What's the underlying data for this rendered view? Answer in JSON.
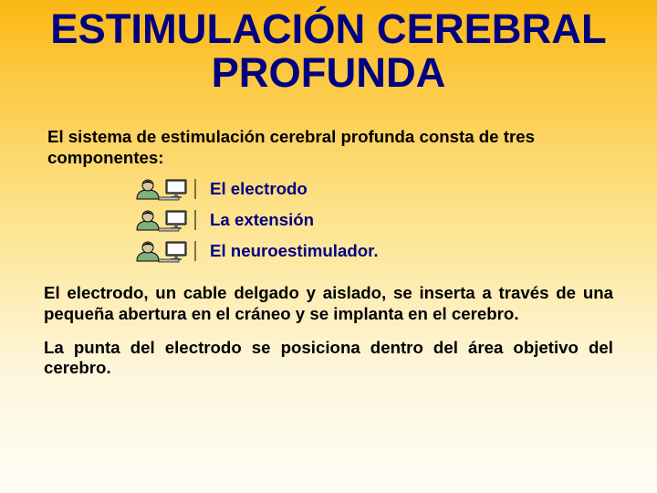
{
  "background": {
    "gradient_colors": [
      "#fbb813",
      "#fcc840",
      "#fde490",
      "#fef6db",
      "#fffdf5"
    ],
    "gradient_stops": [
      0,
      15,
      45,
      75,
      100
    ]
  },
  "typography": {
    "font_family": "Comic Sans MS",
    "title_color": "#000080",
    "body_color": "#000000",
    "title_fontsize_pt": 34,
    "body_fontsize_pt": 14,
    "list_fontsize_pt": 14
  },
  "title": "ESTIMULACIÓN CEREBRAL PROFUNDA",
  "intro": "El sistema de estimulación cerebral profunda consta de tres componentes:",
  "list_items": [
    {
      "label": "El electrodo"
    },
    {
      "label": "La extensión"
    },
    {
      "label": "El neuroestimulador."
    }
  ],
  "bullet_icon": {
    "name": "computer-user-icon",
    "colors": {
      "outline": "#000000",
      "person_fill": "#7fb07f",
      "face_fill": "#d9c7a3",
      "monitor_frame": "#6a6a6a",
      "monitor_screen": "#ffffff",
      "keyboard": "#bfbfbf"
    }
  },
  "paragraphs": [
    "El electrodo, un cable delgado y aislado, se inserta a través de una pequeña abertura en el cráneo y se implanta en el cerebro.",
    "La punta del electrodo se posiciona dentro del área objetivo del cerebro."
  ]
}
